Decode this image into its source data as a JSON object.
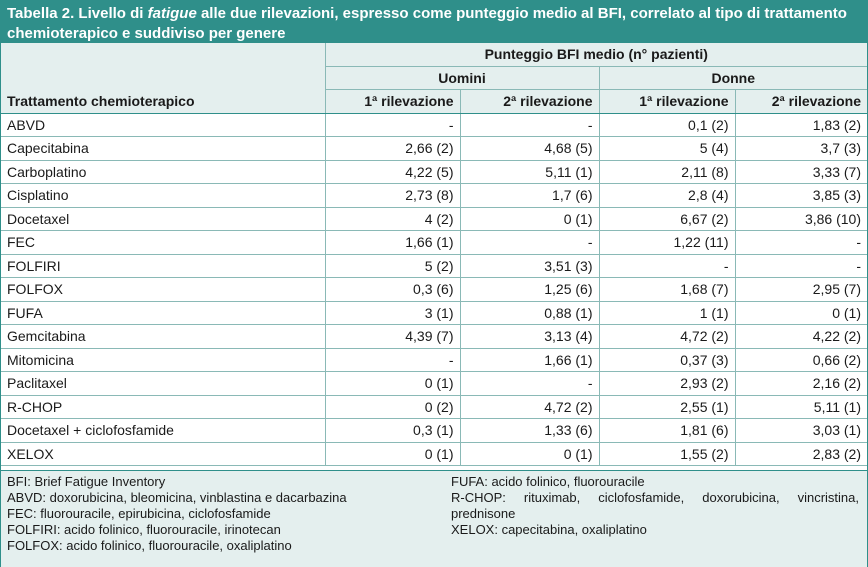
{
  "caption": {
    "label": "Tabella 2.",
    "text_a": " Livello di ",
    "text_italic": "fatigue",
    "text_b": " alle due rilevazioni, espresso come punteggio medio al BFI, correlato al tipo di trattamento chemioterapico e suddiviso per genere"
  },
  "headers": {
    "group": "Punteggio BFI medio (n° pazienti)",
    "men": "Uomini",
    "women": "Donne",
    "treatment": "Trattamento chemioterapico",
    "first": "1ª rilevazione",
    "second": "2ª rilevazione"
  },
  "rows": [
    [
      "ABVD",
      "-",
      "-",
      "0,1 (2)",
      "1,83 (2)"
    ],
    [
      "Capecitabina",
      "2,66 (2)",
      "4,68 (5)",
      "5 (4)",
      "3,7 (3)"
    ],
    [
      "Carboplatino",
      "4,22 (5)",
      "5,11 (1)",
      "2,11 (8)",
      "3,33 (7)"
    ],
    [
      "Cisplatino",
      "2,73 (8)",
      "1,7 (6)",
      "2,8 (4)",
      "3,85 (3)"
    ],
    [
      "Docetaxel",
      "4 (2)",
      "0 (1)",
      "6,67 (2)",
      "3,86 (10)"
    ],
    [
      "FEC",
      "1,66 (1)",
      "-",
      "1,22 (11)",
      "-"
    ],
    [
      "FOLFIRI",
      "5 (2)",
      "3,51 (3)",
      "-",
      "-"
    ],
    [
      "FOLFOX",
      "0,3 (6)",
      "1,25 (6)",
      "1,68 (7)",
      "2,95 (7)"
    ],
    [
      "FUFA",
      "3 (1)",
      "0,88 (1)",
      "1 (1)",
      "0 (1)"
    ],
    [
      "Gemcitabina",
      "4,39 (7)",
      "3,13 (4)",
      "4,72 (2)",
      "4,22 (2)"
    ],
    [
      "Mitomicina",
      "-",
      "1,66 (1)",
      "0,37 (3)",
      "0,66 (2)"
    ],
    [
      "Paclitaxel",
      "0 (1)",
      "-",
      "2,93 (2)",
      "2,16 (2)"
    ],
    [
      "R-CHOP",
      "0 (2)",
      "4,72 (2)",
      "2,55 (1)",
      "5,11 (1)"
    ],
    [
      "Docetaxel + ciclofosfamide",
      "0,3 (1)",
      "1,33 (6)",
      "1,81 (6)",
      "3,03 (1)"
    ],
    [
      "XELOX",
      "0 (1)",
      "0 (1)",
      "1,55 (2)",
      "2,83 (2)"
    ]
  ],
  "notes_left": [
    "BFI: Brief Fatigue Inventory",
    "ABVD: doxorubicina, bleomicina, vinblastina e dacarbazina",
    "FEC: fluorouracile, epirubicina, ciclofosfamide",
    "FOLFIRI: acido folinico, fluorouracile, irinotecan",
    "FOLFOX: acido folinico, fluorouracile, oxaliplatino"
  ],
  "notes_right": [
    "FUFA: acido folinico, fluorouracile",
    "R-CHOP: rituximab, ciclofosfamide, doxorubicina, vincristina, prednisone",
    "XELOX: capecitabina, oxaliplatino"
  ]
}
